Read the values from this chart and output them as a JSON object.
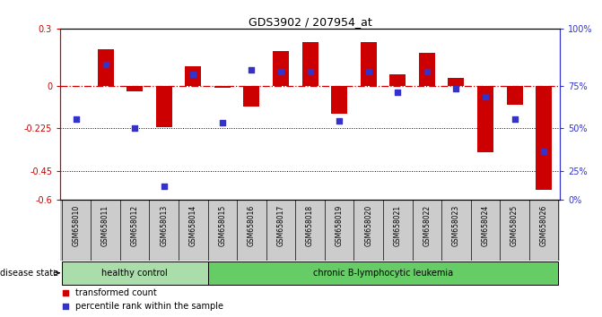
{
  "title": "GDS3902 / 207954_at",
  "samples": [
    "GSM658010",
    "GSM658011",
    "GSM658012",
    "GSM658013",
    "GSM658014",
    "GSM658015",
    "GSM658016",
    "GSM658017",
    "GSM658018",
    "GSM658019",
    "GSM658020",
    "GSM658021",
    "GSM658022",
    "GSM658023",
    "GSM658024",
    "GSM658025",
    "GSM658026"
  ],
  "red_bars": [
    0.0,
    0.19,
    -0.03,
    -0.22,
    0.1,
    -0.01,
    -0.11,
    0.18,
    0.23,
    -0.15,
    0.23,
    0.06,
    0.17,
    0.04,
    -0.35,
    -0.1,
    -0.55
  ],
  "blue_vals_pct": [
    47,
    79,
    42,
    8,
    73,
    45,
    76,
    75,
    75,
    46,
    75,
    63,
    75,
    65,
    60,
    47,
    28
  ],
  "ylim": [
    -0.6,
    0.3
  ],
  "yticks_left": [
    0.3,
    0.0,
    -0.225,
    -0.45,
    -0.6
  ],
  "ytick_labels_left": [
    "0.3",
    "0",
    "-0.225",
    "-0.45",
    "-0.6"
  ],
  "yticks_right_pct": [
    100,
    75,
    50,
    25,
    0
  ],
  "dotted_lines": [
    -0.225,
    -0.45
  ],
  "dashdot_line": 0.0,
  "healthy_control_count": 5,
  "group1_label": "healthy control",
  "group2_label": "chronic B-lymphocytic leukemia",
  "disease_state_label": "disease state",
  "legend_red": "transformed count",
  "legend_blue": "percentile rank within the sample",
  "red_color": "#cc0000",
  "blue_color": "#3333cc",
  "bar_width": 0.55,
  "bg_color": "#ffffff",
  "plot_bg": "#ffffff",
  "healthy_bg": "#aaddaa",
  "leukemia_bg": "#66cc66",
  "tick_section_bg": "#cccccc",
  "right_axis_color": "#3333cc",
  "left_axis_color": "#cc0000"
}
